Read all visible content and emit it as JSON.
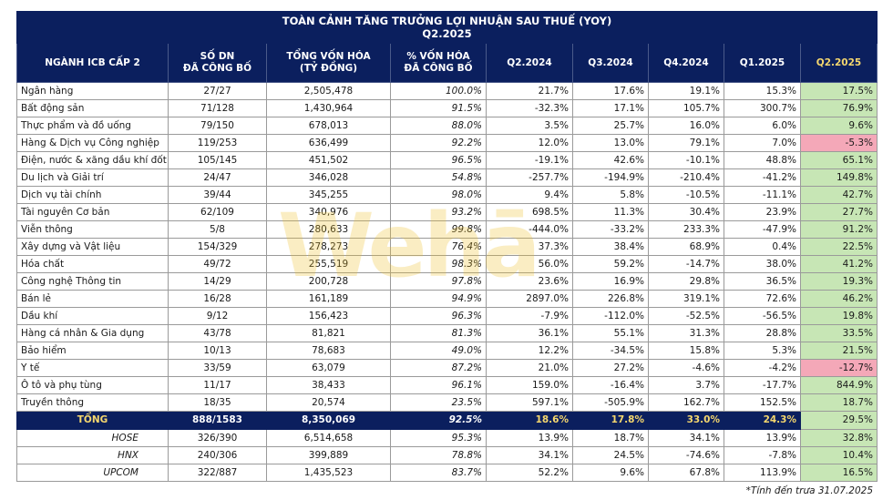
{
  "title_line1": "TOÀN CẢNH TĂNG TRƯỞNG LỢI NHUẬN SAU THUẾ (YOY)",
  "title_line2": "Q2.2025",
  "headers": {
    "industry": "NGÀNH ICB CẤP 2",
    "companies_l1": "SỐ DN",
    "companies_l2": "ĐÃ CÔNG BỐ",
    "mcap_l1": "TỔNG VỐN HÓA",
    "mcap_l2": "(TỶ ĐỒNG)",
    "pct_l1": "% VỐN HÓA",
    "pct_l2": "ĐÃ CÔNG BỐ",
    "q1": "Q2.2024",
    "q2": "Q3.2024",
    "q3": "Q4.2024",
    "q4": "Q1.2025",
    "q5": "Q2.2025"
  },
  "rows": [
    {
      "name": "Ngân hàng",
      "cnt": "27/27",
      "mcap": "2,505,478",
      "pct": "100.0%",
      "q1": "21.7%",
      "q2": "17.6%",
      "q3": "19.1%",
      "q4": "15.3%",
      "q5": "17.5%"
    },
    {
      "name": "Bất động sản",
      "cnt": "71/128",
      "mcap": "1,430,964",
      "pct": "91.5%",
      "q1": "-32.3%",
      "q2": "17.1%",
      "q3": "105.7%",
      "q4": "300.7%",
      "q5": "76.9%"
    },
    {
      "name": "Thực phẩm và đồ uống",
      "cnt": "79/150",
      "mcap": "678,013",
      "pct": "88.0%",
      "q1": "3.5%",
      "q2": "25.7%",
      "q3": "16.0%",
      "q4": "6.0%",
      "q5": "9.6%"
    },
    {
      "name": "Hàng & Dịch vụ Công nghiệp",
      "cnt": "119/253",
      "mcap": "636,499",
      "pct": "92.2%",
      "q1": "12.0%",
      "q2": "13.0%",
      "q3": "79.1%",
      "q4": "7.0%",
      "q5": "-5.3%"
    },
    {
      "name": "Điện, nước & xăng dầu khí đốt",
      "cnt": "105/145",
      "mcap": "451,502",
      "pct": "96.5%",
      "q1": "-19.1%",
      "q2": "42.6%",
      "q3": "-10.1%",
      "q4": "48.8%",
      "q5": "65.1%"
    },
    {
      "name": "Du lịch và Giải trí",
      "cnt": "24/47",
      "mcap": "346,028",
      "pct": "54.8%",
      "q1": "-257.7%",
      "q2": "-194.9%",
      "q3": "-210.4%",
      "q4": "-41.2%",
      "q5": "149.8%"
    },
    {
      "name": "Dịch vụ tài chính",
      "cnt": "39/44",
      "mcap": "345,255",
      "pct": "98.0%",
      "q1": "9.4%",
      "q2": "5.8%",
      "q3": "-10.5%",
      "q4": "-11.1%",
      "q5": "42.7%"
    },
    {
      "name": "Tài nguyên Cơ bản",
      "cnt": "62/109",
      "mcap": "340,976",
      "pct": "93.2%",
      "q1": "698.5%",
      "q2": "11.3%",
      "q3": "30.4%",
      "q4": "23.9%",
      "q5": "27.7%"
    },
    {
      "name": "Viễn thông",
      "cnt": "5/8",
      "mcap": "280,633",
      "pct": "99.8%",
      "q1": "-444.0%",
      "q2": "-33.2%",
      "q3": "233.3%",
      "q4": "-47.9%",
      "q5": "91.2%"
    },
    {
      "name": "Xây dựng và Vật liệu",
      "cnt": "154/329",
      "mcap": "278,273",
      "pct": "76.4%",
      "q1": "37.3%",
      "q2": "38.4%",
      "q3": "68.9%",
      "q4": "0.4%",
      "q5": "22.5%"
    },
    {
      "name": "Hóa chất",
      "cnt": "49/72",
      "mcap": "255,519",
      "pct": "98.3%",
      "q1": "56.0%",
      "q2": "59.2%",
      "q3": "-14.7%",
      "q4": "38.0%",
      "q5": "41.2%"
    },
    {
      "name": "Công nghệ Thông tin",
      "cnt": "14/29",
      "mcap": "200,728",
      "pct": "97.8%",
      "q1": "23.6%",
      "q2": "16.9%",
      "q3": "29.8%",
      "q4": "36.5%",
      "q5": "19.3%"
    },
    {
      "name": "Bán lẻ",
      "cnt": "16/28",
      "mcap": "161,189",
      "pct": "94.9%",
      "q1": "2897.0%",
      "q2": "226.8%",
      "q3": "319.1%",
      "q4": "72.6%",
      "q5": "46.2%"
    },
    {
      "name": "Dầu khí",
      "cnt": "9/12",
      "mcap": "156,423",
      "pct": "96.3%",
      "q1": "-7.9%",
      "q2": "-112.0%",
      "q3": "-52.5%",
      "q4": "-56.5%",
      "q5": "19.8%"
    },
    {
      "name": "Hàng cá nhân & Gia dụng",
      "cnt": "43/78",
      "mcap": "81,821",
      "pct": "81.3%",
      "q1": "36.1%",
      "q2": "55.1%",
      "q3": "31.3%",
      "q4": "28.8%",
      "q5": "33.5%"
    },
    {
      "name": "Bảo hiểm",
      "cnt": "10/13",
      "mcap": "78,683",
      "pct": "49.0%",
      "q1": "12.2%",
      "q2": "-34.5%",
      "q3": "15.8%",
      "q4": "5.3%",
      "q5": "21.5%"
    },
    {
      "name": "Y tế",
      "cnt": "33/59",
      "mcap": "63,079",
      "pct": "87.2%",
      "q1": "21.0%",
      "q2": "27.2%",
      "q3": "-4.6%",
      "q4": "-4.2%",
      "q5": "-12.7%"
    },
    {
      "name": "Ô tô và phụ tùng",
      "cnt": "11/17",
      "mcap": "38,433",
      "pct": "96.1%",
      "q1": "159.0%",
      "q2": "-16.4%",
      "q3": "3.7%",
      "q4": "-17.7%",
      "q5": "844.9%"
    },
    {
      "name": "Truyền thông",
      "cnt": "18/35",
      "mcap": "20,574",
      "pct": "23.5%",
      "q1": "597.1%",
      "q2": "-505.9%",
      "q3": "162.7%",
      "q4": "152.5%",
      "q5": "18.7%"
    }
  ],
  "total": {
    "name": "TỔNG",
    "cnt": "888/1583",
    "mcap": "8,350,069",
    "pct": "92.5%",
    "q1": "18.6%",
    "q2": "17.8%",
    "q3": "33.0%",
    "q4": "24.3%",
    "q5": "29.5%"
  },
  "exchanges": [
    {
      "name": "HOSE",
      "cnt": "326/390",
      "mcap": "6,514,658",
      "pct": "95.3%",
      "q1": "13.9%",
      "q2": "18.7%",
      "q3": "34.1%",
      "q4": "13.9%",
      "q5": "32.8%"
    },
    {
      "name": "HNX",
      "cnt": "240/306",
      "mcap": "399,889",
      "pct": "78.8%",
      "q1": "34.1%",
      "q2": "24.5%",
      "q3": "-74.6%",
      "q4": "-7.8%",
      "q5": "10.4%"
    },
    {
      "name": "UPCOM",
      "cnt": "322/887",
      "mcap": "1,435,523",
      "pct": "83.7%",
      "q1": "52.2%",
      "q2": "9.6%",
      "q3": "67.8%",
      "q4": "113.9%",
      "q5": "16.5%"
    }
  ],
  "colors": {
    "header_bg": "#0b1f5e",
    "positive_bg": "#c7e6b5",
    "negative_bg": "#f4a8b8",
    "total_highlight": "#f5d76e"
  },
  "watermark": "Wehā",
  "footnote": "*Tính đến trưa 31.07.2025"
}
